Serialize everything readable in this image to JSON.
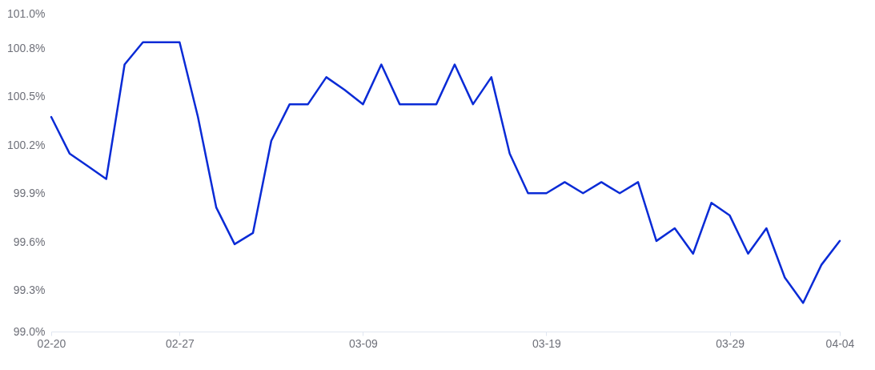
{
  "chart_data": {
    "type": "line",
    "x": [
      "--02-20",
      "--02-21",
      "--02-22",
      "--02-23",
      "--02-24",
      "--02-25",
      "--02-26",
      "--02-27",
      "--02-28",
      "--03-01",
      "--03-02",
      "--03-03",
      "--03-04",
      "--03-05",
      "--03-06",
      "--03-07",
      "--03-08",
      "--03-09",
      "--03-10",
      "--03-11",
      "--03-12",
      "--03-13",
      "--03-14",
      "--03-15",
      "--03-16",
      "--03-17",
      "--03-18",
      "--03-19",
      "--03-20",
      "--03-21",
      "--03-22",
      "--03-23",
      "--03-24",
      "--03-25",
      "--03-26",
      "--03-27",
      "--03-28",
      "--03-29",
      "--03-30",
      "--03-31",
      "--04-01",
      "--04-02",
      "--04-03",
      "--04-04"
    ],
    "series": [
      {
        "color": "#0a2bd6",
        "values": [
          100.35,
          100.12,
          100.04,
          99.96,
          100.68,
          100.82,
          100.82,
          100.82,
          100.35,
          99.78,
          99.55,
          99.62,
          100.2,
          100.43,
          100.43,
          100.6,
          100.52,
          100.43,
          100.68,
          100.43,
          100.43,
          100.43,
          100.68,
          100.43,
          100.6,
          100.12,
          99.87,
          99.87,
          99.94,
          99.87,
          99.94,
          99.87,
          99.94,
          99.57,
          99.65,
          99.49,
          99.81,
          99.73,
          99.49,
          99.65,
          99.34,
          99.18,
          99.42,
          99.57
        ]
      }
    ],
    "xlim": [
      "--02-20",
      "--04-04"
    ],
    "xticks": [
      {
        "value": "--02-20",
        "label": "02-20"
      },
      {
        "value": "--02-27",
        "label": "02-27"
      },
      {
        "value": "--03-09",
        "label": "03-09"
      },
      {
        "value": "--03-19",
        "label": "03-19"
      },
      {
        "value": "--03-29",
        "label": "03-29"
      },
      {
        "value": "--04-04",
        "label": "04-04"
      }
    ],
    "ylim": [
      99.0,
      101.0
    ],
    "yticks": [
      {
        "value": 99.0,
        "label": "99.0%"
      },
      {
        "value": 99.26,
        "label": "99.3%"
      },
      {
        "value": 99.56,
        "label": "99.6%"
      },
      {
        "value": 99.87,
        "label": "99.9%"
      },
      {
        "value": 100.17,
        "label": "100.2%"
      },
      {
        "value": 100.48,
        "label": "100.5%"
      },
      {
        "value": 100.78,
        "label": "100.8%"
      },
      {
        "value": 101.0,
        "label": "101.0%"
      }
    ],
    "grid": false,
    "marker": "none",
    "line_style": "solid"
  }
}
